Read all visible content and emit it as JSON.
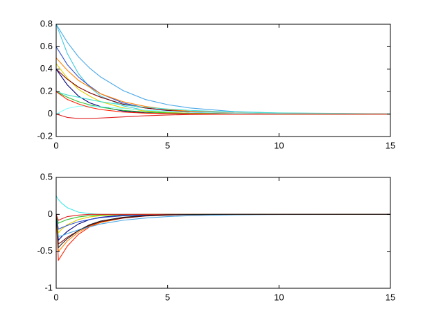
{
  "chart_data": [
    {
      "type": "line",
      "x": [
        0,
        0.5,
        1,
        1.5,
        2,
        3,
        4,
        5,
        6,
        8,
        10,
        15
      ],
      "xlim": [
        0,
        15
      ],
      "xticks": [
        0,
        5,
        10,
        15
      ],
      "ylim": [
        -0.2,
        0.8
      ],
      "yticks": [
        -0.2,
        0,
        0.2,
        0.4,
        0.6,
        0.8
      ],
      "series": [
        {
          "color": "#4aa8e8",
          "values": [
            0.8,
            0.64,
            0.51,
            0.41,
            0.33,
            0.21,
            0.13,
            0.084,
            0.054,
            0.022,
            0.009,
            0.001
          ]
        },
        {
          "color": "#40c8e0",
          "values": [
            0.8,
            0.54,
            0.36,
            0.24,
            0.16,
            0.073,
            0.033,
            0.015,
            0.007,
            0.001,
            0,
            0
          ]
        },
        {
          "color": "#3050d0",
          "values": [
            0.6,
            0.44,
            0.33,
            0.25,
            0.18,
            0.099,
            0.055,
            0.03,
            0.016,
            0.005,
            0.001,
            0
          ]
        },
        {
          "color": "#ff8000",
          "values": [
            0.5,
            0.39,
            0.3,
            0.24,
            0.18,
            0.11,
            0.068,
            0.041,
            0.025,
            0.009,
            0.003,
            0
          ]
        },
        {
          "color": "#e0d000",
          "values": [
            0.45,
            0.32,
            0.22,
            0.16,
            0.11,
            0.055,
            0.027,
            0.014,
            0.007,
            0.002,
            0,
            0
          ]
        },
        {
          "color": "#800000",
          "values": [
            0.4,
            0.31,
            0.24,
            0.19,
            0.15,
            0.088,
            0.054,
            0.033,
            0.02,
            0.007,
            0.003,
            0
          ]
        },
        {
          "color": "#000080",
          "values": [
            0.4,
            0.26,
            0.16,
            0.1,
            0.066,
            0.027,
            0.011,
            0.004,
            0.002,
            0,
            0,
            0
          ]
        },
        {
          "color": "#40e0d0",
          "values": [
            0.2,
            0.17,
            0.15,
            0.13,
            0.11,
            0.081,
            0.06,
            0.045,
            0.033,
            0.018,
            0.01,
            0.002
          ]
        },
        {
          "color": "#30c030",
          "values": [
            0.2,
            0.15,
            0.11,
            0.082,
            0.06,
            0.033,
            0.018,
            0.01,
            0.005,
            0.002,
            0,
            0
          ]
        },
        {
          "color": "#e02020",
          "values": [
            0,
            -0.03,
            -0.04,
            -0.04,
            -0.035,
            -0.025,
            -0.015,
            -0.008,
            -0.004,
            -0.001,
            0,
            0
          ]
        },
        {
          "color": "#80ffff",
          "values": [
            0,
            0.05,
            0.07,
            0.07,
            0.065,
            0.05,
            0.035,
            0.025,
            0.017,
            0.007,
            0.003,
            0
          ]
        },
        {
          "color": "#ff2000",
          "values": [
            0.2,
            0.13,
            0.09,
            0.06,
            0.04,
            0.018,
            0.008,
            0.004,
            0.002,
            0,
            0,
            0
          ]
        }
      ]
    },
    {
      "type": "line",
      "x": [
        0,
        0.1,
        0.25,
        0.5,
        1,
        1.5,
        2,
        3,
        4,
        5,
        6,
        8,
        10,
        15
      ],
      "xlim": [
        0,
        15
      ],
      "xticks": [
        0,
        5,
        10,
        15
      ],
      "ylim": [
        -1,
        0.5
      ],
      "yticks": [
        -1,
        -0.5,
        0,
        0.5
      ],
      "series": [
        {
          "color": "#40e8e8",
          "values": [
            0.25,
            0.2,
            0.15,
            0.09,
            0.03,
            0.01,
            0,
            0,
            0,
            0,
            0,
            0,
            0,
            0
          ]
        },
        {
          "color": "#ff2000",
          "values": [
            0,
            -0.62,
            -0.55,
            -0.43,
            -0.27,
            -0.17,
            -0.11,
            -0.045,
            -0.018,
            -0.007,
            -0.003,
            0,
            0,
            0
          ]
        },
        {
          "color": "#ff8000",
          "values": [
            0,
            -0.5,
            -0.45,
            -0.36,
            -0.24,
            -0.16,
            -0.11,
            -0.05,
            -0.02,
            -0.008,
            -0.003,
            0,
            0,
            0
          ]
        },
        {
          "color": "#800000",
          "values": [
            0,
            -0.4,
            -0.37,
            -0.31,
            -0.22,
            -0.15,
            -0.1,
            -0.05,
            -0.022,
            -0.01,
            -0.004,
            0,
            0,
            0
          ]
        },
        {
          "color": "#000080",
          "values": [
            0,
            -0.35,
            -0.3,
            -0.23,
            -0.13,
            -0.07,
            -0.04,
            -0.012,
            -0.004,
            0,
            0,
            0,
            0,
            0
          ]
        },
        {
          "color": "#4aa8e8",
          "values": [
            0,
            -0.3,
            -0.29,
            -0.26,
            -0.21,
            -0.17,
            -0.13,
            -0.08,
            -0.05,
            -0.03,
            -0.018,
            -0.007,
            -0.002,
            0
          ]
        },
        {
          "color": "#e0d000",
          "values": [
            0,
            -0.25,
            -0.2,
            -0.14,
            -0.07,
            -0.035,
            -0.017,
            -0.004,
            -0.001,
            0,
            0,
            0,
            0,
            0
          ]
        },
        {
          "color": "#3050d0",
          "values": [
            0,
            -0.2,
            -0.18,
            -0.15,
            -0.1,
            -0.07,
            -0.045,
            -0.02,
            -0.01,
            -0.004,
            -0.002,
            0,
            0,
            0
          ]
        },
        {
          "color": "#30c030",
          "values": [
            0,
            -0.12,
            -0.1,
            -0.07,
            -0.035,
            -0.017,
            -0.008,
            -0.002,
            0,
            0,
            0,
            0,
            0,
            0
          ]
        },
        {
          "color": "#e02020",
          "values": [
            0,
            -0.08,
            -0.06,
            -0.03,
            -0.01,
            0,
            0,
            0,
            0,
            0,
            0,
            0,
            0,
            0
          ]
        },
        {
          "color": "#202020",
          "values": [
            0,
            -0.45,
            -0.4,
            -0.33,
            -0.22,
            -0.14,
            -0.09,
            -0.04,
            -0.016,
            -0.006,
            -0.002,
            0,
            0,
            0
          ]
        }
      ]
    }
  ]
}
